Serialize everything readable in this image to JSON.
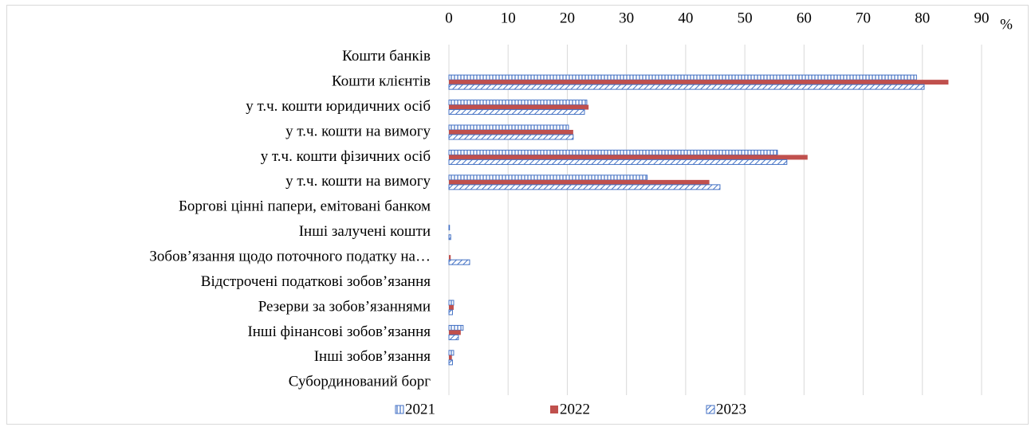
{
  "chart_data": {
    "type": "hbar",
    "unit": "%",
    "categories": [
      "Кошти банків",
      "Кошти клієнтів",
      "у т.ч. кошти юридичних осіб",
      "у т.ч. кошти на вимогу",
      "у т.ч. кошти фізичних осіб",
      "у т.ч. кошти на вимогу",
      "Боргові цінні папери, емітовані банком",
      "Інші залучені кошти",
      "Зобов’язання щодо поточного податку на…",
      "Відстрочені податкові зобов’язання",
      "Резерви за зобов’язаннями",
      "Інші фінансові зобов’язання",
      "Інші зобов’язання",
      "Субординований борг"
    ],
    "series": [
      {
        "name": "2021",
        "color": "#4472c4",
        "pattern": "vertical",
        "values": [
          0,
          79,
          23.3,
          20.2,
          55.5,
          33.5,
          0,
          0.1,
          0,
          0,
          0.8,
          2.4,
          0.8,
          0
        ]
      },
      {
        "name": "2022",
        "color": "#c0504d",
        "pattern": "solid",
        "values": [
          0,
          84.4,
          23.6,
          21,
          60.6,
          44,
          0,
          0,
          0.3,
          0,
          0.8,
          2.0,
          0.5,
          0
        ]
      },
      {
        "name": "2023",
        "color": "#4472c4",
        "pattern": "diagonal",
        "values": [
          0,
          80.3,
          22.9,
          21,
          57.1,
          45.8,
          0,
          0.3,
          3.5,
          0,
          0.6,
          1.6,
          0.6,
          0
        ]
      }
    ],
    "xlim": [
      0,
      90
    ],
    "xticks": [
      0,
      10,
      20,
      30,
      40,
      50,
      60,
      70,
      80,
      90
    ],
    "grid": true,
    "legend": "bottom"
  }
}
